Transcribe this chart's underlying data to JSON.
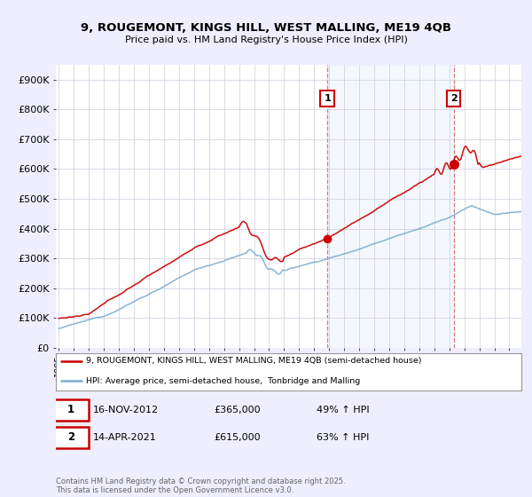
{
  "title": "9, ROUGEMONT, KINGS HILL, WEST MALLING, ME19 4QB",
  "subtitle": "Price paid vs. HM Land Registry's House Price Index (HPI)",
  "background_color": "#eeeeff",
  "plot_bg_color": "#ffffff",
  "red_color": "#cc0000",
  "blue_color": "#7aadcf",
  "ylim": [
    0,
    950000
  ],
  "yticks": [
    0,
    100000,
    200000,
    300000,
    400000,
    500000,
    600000,
    700000,
    800000,
    900000
  ],
  "ytick_labels": [
    "£0",
    "£100K",
    "£200K",
    "£300K",
    "£400K",
    "£500K",
    "£600K",
    "£700K",
    "£800K",
    "£900K"
  ],
  "xmin": 1994.8,
  "xmax": 2025.8,
  "sale1_x": 2012.88,
  "sale1_y": 365000,
  "sale2_x": 2021.29,
  "sale2_y": 615000,
  "legend_line1": "9, ROUGEMONT, KINGS HILL, WEST MALLING, ME19 4QB (semi-detached house)",
  "legend_line2": "HPI: Average price, semi-detached house,  Tonbridge and Malling",
  "sale1_date": "16-NOV-2012",
  "sale1_price": "£365,000",
  "sale1_hpi": "49% ↑ HPI",
  "sale2_date": "14-APR-2021",
  "sale2_price": "£615,000",
  "sale2_hpi": "63% ↑ HPI",
  "footer": "Contains HM Land Registry data © Crown copyright and database right 2025.\nThis data is licensed under the Open Government Licence v3.0."
}
